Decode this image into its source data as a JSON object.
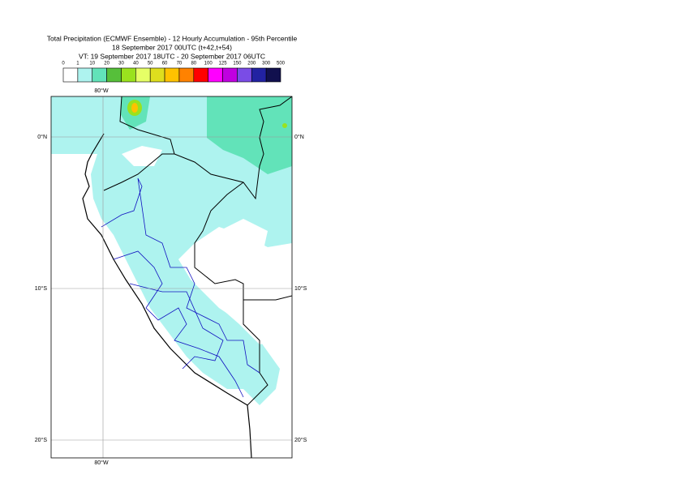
{
  "map": {
    "title": [
      "Total Precipitation (ECMWF Ensemble) - 12 Hourly Accumulation - 95th Percentile",
      "18 September 2017 00UTC (t+42,t+54)",
      "VT: 19 September 2017 18UTC - 20 September 2017 06UTC"
    ],
    "legend": {
      "labels": [
        0,
        1,
        10,
        20,
        30,
        40,
        50,
        60,
        70,
        80,
        100,
        125,
        150,
        200,
        300,
        500
      ],
      "colors": [
        "#ffffff",
        "#aef3ef",
        "#62e3b9",
        "#56bf3a",
        "#9ae21e",
        "#e6ff66",
        "#dede1e",
        "#ffc200",
        "#ff8200",
        "#ff0000",
        "#ff00ff",
        "#c000e0",
        "#7a4ce6",
        "#2222a2",
        "#11104e"
      ]
    },
    "longitude_labels": [
      "80°W"
    ],
    "latitude_labels": [
      "0°N",
      "10°S",
      "20°S"
    ]
  }
}
